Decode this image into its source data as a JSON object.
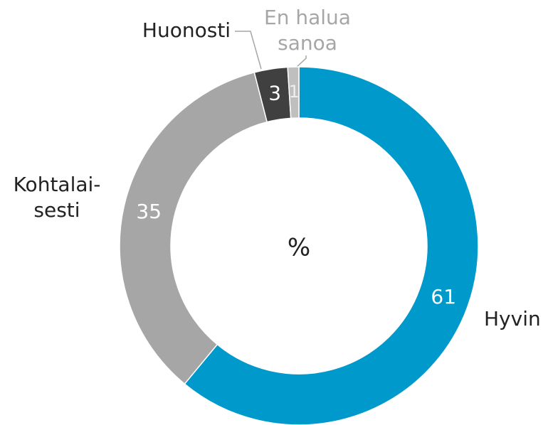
{
  "chart_data": {
    "type": "donut",
    "center_label": "%",
    "categories": [
      "Hyvin",
      "Kohtalai-\nsesti",
      "Huonosti",
      "En halua\nsanoa"
    ],
    "values": [
      61,
      35,
      3,
      1
    ],
    "colors": [
      "#0099cc",
      "#a6a6a6",
      "#404040",
      "#bfbfbf"
    ]
  }
}
